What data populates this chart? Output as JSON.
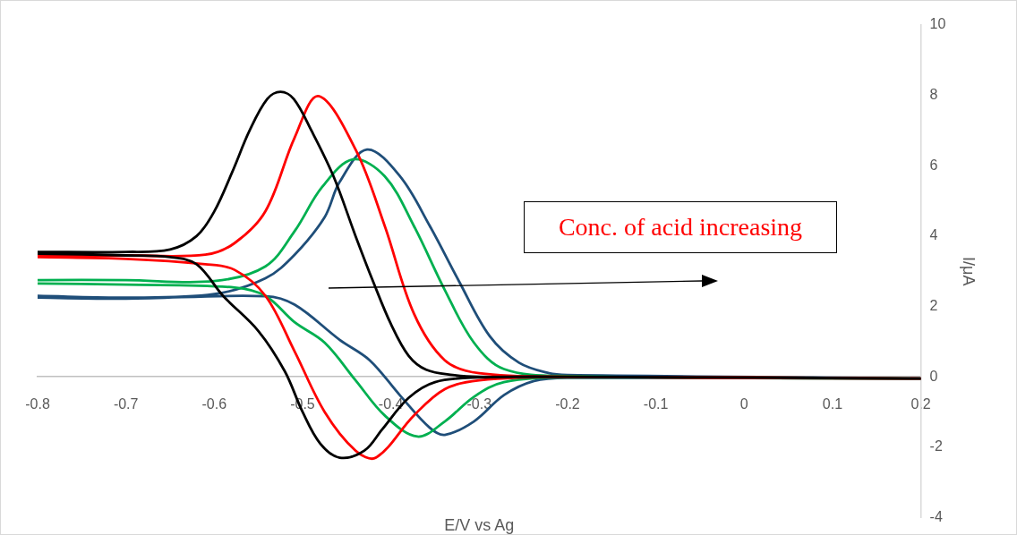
{
  "chart_data": {
    "type": "line",
    "xlabel": "E/V vs Ag",
    "ylabel": "I/μA",
    "xlim": [
      -0.8,
      0.2
    ],
    "xticks": [
      -0.8,
      -0.7,
      -0.6,
      -0.5,
      -0.4,
      -0.3,
      -0.2,
      -0.1,
      0,
      0.1,
      0.2
    ],
    "ylim": [
      -4,
      10
    ],
    "yticks": [
      -4,
      -2,
      0,
      2,
      4,
      6,
      8,
      10
    ],
    "grid": false,
    "legend": false,
    "marker": "none",
    "line_style": "solid",
    "annotations": [
      "Conc. of acid increasing"
    ],
    "series": [
      {
        "color": "#000000",
        "x": [
          -0.8,
          -0.7,
          -0.65,
          -0.62,
          -0.6,
          -0.58,
          -0.56,
          -0.54,
          -0.525,
          -0.51,
          -0.49,
          -0.465,
          -0.44,
          -0.42,
          -0.4,
          -0.38,
          -0.36,
          -0.33,
          -0.3,
          -0.2,
          0.2,
          -0.2,
          -0.3,
          -0.35,
          -0.38,
          -0.41,
          -0.43,
          -0.458,
          -0.48,
          -0.5,
          -0.52,
          -0.55,
          -0.59,
          -0.62,
          -0.65,
          -0.7,
          -0.8
        ],
        "values": [
          3.55,
          3.55,
          3.62,
          4.0,
          4.7,
          5.8,
          7.0,
          7.9,
          8.1,
          7.9,
          7.0,
          5.7,
          4.0,
          2.7,
          1.5,
          0.6,
          0.2,
          0.05,
          0,
          0,
          -0.05,
          0,
          -0.02,
          -0.15,
          -0.6,
          -1.5,
          -2.1,
          -2.3,
          -1.9,
          -1.0,
          0.15,
          1.3,
          2.3,
          3.2,
          3.4,
          3.45,
          3.5
        ]
      },
      {
        "color": "#ff0000",
        "x": [
          -0.8,
          -0.7,
          -0.61,
          -0.577,
          -0.542,
          -0.509,
          -0.482,
          -0.44,
          -0.407,
          -0.374,
          -0.339,
          -0.3,
          -0.2,
          0.2,
          -0.2,
          -0.3,
          -0.339,
          -0.374,
          -0.417,
          -0.44,
          -0.475,
          -0.509,
          -0.542,
          -0.577,
          -0.61,
          -0.7,
          -0.8
        ],
        "values": [
          3.45,
          3.45,
          3.47,
          3.8,
          4.71,
          6.8,
          7.98,
          6.46,
          4.29,
          1.8,
          0.47,
          0.1,
          0,
          -0.05,
          0,
          -0.1,
          -0.35,
          -1.1,
          -2.3,
          -2.1,
          -1.0,
          0.72,
          2.3,
          3.04,
          3.2,
          3.35,
          3.4
        ]
      },
      {
        "color": "#00b050",
        "x": [
          -0.8,
          -0.7,
          -0.6,
          -0.542,
          -0.509,
          -0.478,
          -0.443,
          -0.407,
          -0.374,
          -0.339,
          -0.306,
          -0.272,
          -0.2,
          0.2,
          -0.2,
          -0.272,
          -0.306,
          -0.339,
          -0.37,
          -0.407,
          -0.44,
          -0.475,
          -0.509,
          -0.542,
          -0.577,
          -0.7,
          -0.8
        ],
        "values": [
          2.75,
          2.75,
          2.72,
          3.14,
          4.14,
          5.39,
          6.18,
          5.7,
          4.29,
          2.47,
          0.97,
          0.22,
          0.02,
          -0.05,
          -0.02,
          -0.15,
          -0.57,
          -1.27,
          -1.7,
          -1.1,
          -0.1,
          0.97,
          1.55,
          2.3,
          2.54,
          2.62,
          2.65
        ]
      },
      {
        "color": "#1f4e79",
        "x": [
          -0.8,
          -0.7,
          -0.6,
          -0.542,
          -0.509,
          -0.475,
          -0.458,
          -0.427,
          -0.39,
          -0.356,
          -0.323,
          -0.288,
          -0.255,
          -0.221,
          -0.2,
          0.2,
          -0.2,
          -0.238,
          -0.272,
          -0.306,
          -0.339,
          -0.356,
          -0.39,
          -0.424,
          -0.458,
          -0.509,
          -0.542,
          -0.7,
          -0.8
        ],
        "values": [
          2.3,
          2.25,
          2.35,
          2.8,
          3.47,
          4.54,
          5.54,
          6.46,
          5.71,
          4.29,
          2.72,
          1.15,
          0.4,
          0.1,
          0.05,
          -0.05,
          -0.03,
          -0.12,
          -0.52,
          -1.27,
          -1.65,
          -1.45,
          -0.52,
          0.47,
          1.05,
          2.05,
          2.29,
          2.22,
          2.25
        ]
      }
    ]
  }
}
